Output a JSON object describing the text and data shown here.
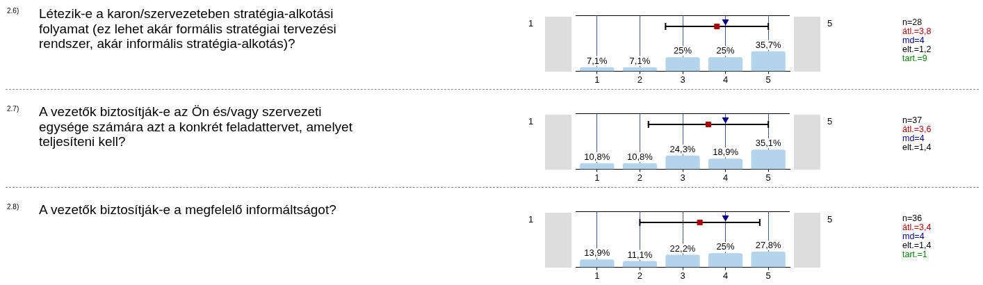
{
  "chart_data": [
    {
      "type": "bar",
      "annotations": [
        "2.6)",
        "Létezik-e a karon/szervezeteben stratégia-alkotási folyamat (ez lehet akár formális stratégiai tervezési rendszer, akár informális stratégia-alkotás)?",
        "1",
        "5",
        "n=28",
        "átl.=3,8",
        "md=4",
        "elt.=1,2",
        "tart.=9"
      ],
      "xlim": [
        0.5,
        5.5
      ],
      "xticks": [
        1,
        2,
        3,
        4,
        5
      ],
      "grid": "x",
      "tick_labels": "x",
      "series": [
        {
          "color": "#b4d4ec",
          "x": [
            1,
            2,
            3,
            4,
            5
          ],
          "values": [
            7.1,
            7.1,
            25,
            25,
            35.7
          ],
          "value_labels": [
            "7,1%",
            "7,1%",
            "25%",
            "25%",
            "35,7%"
          ]
        },
        {
          "type": "scatter",
          "color": "#aa0000",
          "marker": "square",
          "x": [
            3.8
          ],
          "values": [
            80
          ],
          "xerrors": [
            1.2
          ]
        },
        {
          "type": "scatter",
          "color": "#000080",
          "marker": "triangle",
          "x": [
            4
          ],
          "values": [
            89
          ]
        }
      ]
    },
    {
      "type": "bar",
      "annotations": [
        "2.7)",
        "A vezetők biztosítják-e az Ön és/vagy szervezeti egysége számára azt a konkrét feladattervet, amelyet teljesíteni kell?",
        "1",
        "5",
        "n=37",
        "átl.=3,6",
        "md=4",
        "elt.=1,4"
      ],
      "xlim": [
        0.5,
        5.5
      ],
      "xticks": [
        1,
        2,
        3,
        4,
        5
      ],
      "grid": "x",
      "tick_labels": "x",
      "series": [
        {
          "color": "#b4d4ec",
          "x": [
            1,
            2,
            3,
            4,
            5
          ],
          "values": [
            10.8,
            10.8,
            24.3,
            18.9,
            35.1
          ],
          "value_labels": [
            "10,8%",
            "10,8%",
            "24,3%",
            "18,9%",
            "35,1%"
          ]
        },
        {
          "type": "scatter",
          "color": "#aa0000",
          "marker": "square",
          "x": [
            3.6
          ],
          "values": [
            80
          ],
          "xerrors": [
            1.4
          ]
        },
        {
          "type": "scatter",
          "color": "#000080",
          "marker": "triangle",
          "x": [
            4
          ],
          "values": [
            89
          ]
        }
      ]
    },
    {
      "type": "bar",
      "annotations": [
        "2.8)",
        "A vezetők biztosítják-e a megfelelő informáltságot?",
        "1",
        "5",
        "n=36",
        "átl.=3,4",
        "md=4",
        "elt.=1,4",
        "tart.=1"
      ],
      "xlim": [
        0.5,
        5.5
      ],
      "xticks": [
        1,
        2,
        3,
        4,
        5
      ],
      "grid": "x",
      "tick_labels": "x",
      "series": [
        {
          "color": "#b4d4ec",
          "x": [
            1,
            2,
            3,
            4,
            5
          ],
          "values": [
            13.9,
            11.1,
            22.2,
            25,
            27.8
          ],
          "value_labels": [
            "13,9%",
            "11,1%",
            "22,2%",
            "25%",
            "27,8%"
          ]
        },
        {
          "type": "scatter",
          "color": "#aa0000",
          "marker": "square",
          "x": [
            3.4
          ],
          "values": [
            80
          ],
          "xerrors": [
            1.4
          ]
        },
        {
          "type": "scatter",
          "color": "#000080",
          "marker": "triangle",
          "x": [
            4
          ],
          "values": [
            89
          ]
        }
      ]
    }
  ]
}
